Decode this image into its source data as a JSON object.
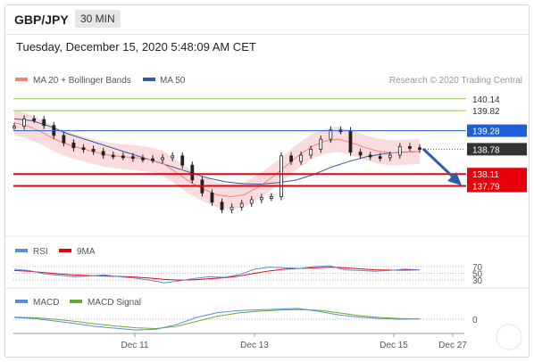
{
  "header": {
    "pair": "GBP/JPY",
    "timeframe": "30 MIN",
    "datetime": "Tuesday, December 15, 2020 5:48:09 AM CET"
  },
  "legend": {
    "ma20_label": "MA 20 + Bollinger Bands",
    "ma50_label": "MA 50",
    "credit": "Research © 2020 Trading Central",
    "rsi_label": "RSI",
    "rsi_ma_label": "9MA",
    "macd_label": "MACD",
    "macd_signal_label": "MACD Signal"
  },
  "colors": {
    "ma20": "#f08080",
    "ma50": "#2f5ba8",
    "band": "#f9d0d0",
    "resistance_green": "#8cc84b",
    "pivot": "#1e5fd8",
    "support": "#e8000b",
    "current": "#333333",
    "rsi": "#5b8bdb",
    "rsi_ma": "#e8000b",
    "macd": "#5b8bdb",
    "macd_signal": "#6aa82d"
  },
  "chart_data": {
    "type": "line",
    "x_labels": [
      "Dec 11",
      "Dec 13",
      "Dec 15",
      "Dec 27"
    ],
    "ylim": [
      136.6,
      140.4
    ],
    "price_levels": [
      {
        "label": "140.14",
        "value": 140.14,
        "kind": "resistance"
      },
      {
        "label": "139.82",
        "value": 139.82,
        "kind": "resistance"
      },
      {
        "label": "139.28",
        "value": 139.28,
        "kind": "pivot"
      },
      {
        "label": "138.78",
        "value": 138.78,
        "kind": "current"
      },
      {
        "label": "138.11",
        "value": 138.11,
        "kind": "support"
      },
      {
        "label": "137.79",
        "value": 137.79,
        "kind": "support"
      }
    ],
    "price_series": [
      139.4,
      139.6,
      139.58,
      139.42,
      139.15,
      138.95,
      138.82,
      138.78,
      138.72,
      138.62,
      138.6,
      138.58,
      138.54,
      138.52,
      138.5,
      138.55,
      138.6,
      138.35,
      137.95,
      137.6,
      137.35,
      137.15,
      137.22,
      137.32,
      137.42,
      137.48,
      137.5,
      138.6,
      138.45,
      138.62,
      138.78,
      139.05,
      139.3,
      139.28,
      138.7,
      138.62,
      138.58,
      138.55,
      138.62,
      138.85,
      138.82,
      138.78
    ],
    "ma20": [
      139.5,
      139.4,
      139.25,
      139.05,
      138.9,
      138.8,
      138.7,
      138.62,
      138.58,
      138.55,
      138.5,
      138.4,
      138.15,
      137.9,
      137.7,
      137.55,
      137.5,
      137.55,
      137.75,
      138.0,
      138.3,
      138.6,
      138.85,
      139.0,
      139.05,
      138.95,
      138.82,
      138.72,
      138.68,
      138.7,
      138.72
    ],
    "ma50": [
      139.6,
      139.55,
      139.4,
      139.2,
      139.05,
      138.9,
      138.75,
      138.6,
      138.45,
      138.3,
      138.15,
      138.0,
      137.9,
      137.85,
      137.84,
      137.88,
      137.95,
      138.1,
      138.3,
      138.45,
      138.58,
      138.66,
      138.7,
      138.72
    ],
    "rsi": {
      "levels": [
        70,
        50,
        30
      ],
      "labels": [
        "70",
        "50",
        "30"
      ],
      "series": [
        62,
        58,
        48,
        44,
        40,
        42,
        45,
        40,
        36,
        30,
        22,
        28,
        35,
        40,
        38,
        46,
        62,
        68,
        66,
        64,
        70,
        72,
        60,
        58,
        56,
        58,
        62,
        60
      ],
      "ma9": [
        58,
        56,
        52,
        48,
        45,
        43,
        42,
        41,
        39,
        36,
        32,
        30,
        31,
        34,
        37,
        42,
        50,
        57,
        62,
        64,
        66,
        68,
        66,
        63,
        60,
        59,
        59,
        60
      ]
    },
    "macd": {
      "zero_label": "0",
      "macd": [
        0.05,
        0.02,
        -0.05,
        -0.12,
        -0.2,
        -0.25,
        -0.3,
        -0.28,
        -0.15,
        0.05,
        0.18,
        0.24,
        0.26,
        0.28,
        0.3,
        0.22,
        0.12,
        0.06,
        0.02,
        0.0,
        0.01
      ],
      "signal": [
        0.06,
        0.04,
        0.0,
        -0.06,
        -0.13,
        -0.19,
        -0.24,
        -0.26,
        -0.2,
        -0.06,
        0.08,
        0.17,
        0.22,
        0.25,
        0.27,
        0.25,
        0.18,
        0.1,
        0.05,
        0.02,
        0.01
      ]
    }
  }
}
